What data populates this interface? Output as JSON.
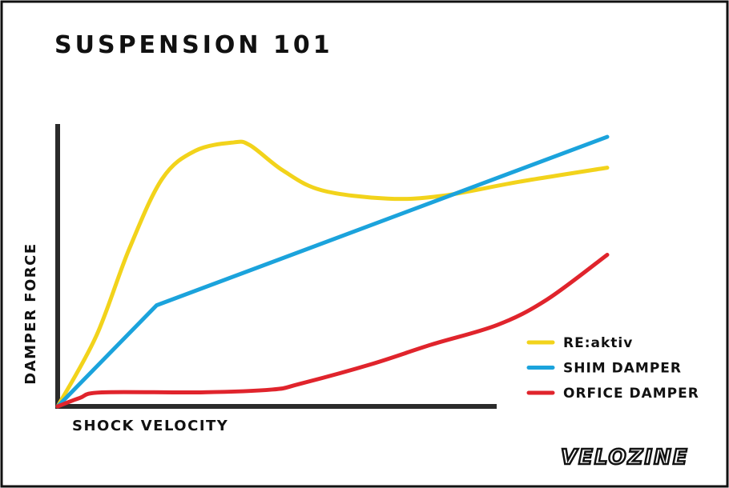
{
  "chart_data": {
    "type": "line",
    "title": "SUSPENSION 101",
    "x_label": "SHOCK VELOCITY",
    "y_label": "DAMPER FORCE",
    "xlim": [
      0,
      100
    ],
    "ylim": [
      0,
      100
    ],
    "legend": "right",
    "series": [
      {
        "name": "RE:aktiv",
        "color": "#f2d31b",
        "smooth": true,
        "x": [
          0,
          7,
          13,
          19,
          25,
          32,
          35,
          41,
          48,
          60,
          70,
          84,
          100
        ],
        "values": [
          0,
          25,
          56,
          81,
          91,
          94,
          93,
          84,
          77,
          74,
          75,
          80,
          85
        ]
      },
      {
        "name": "SHIM DAMPER",
        "color": "#1ba3dc",
        "smooth": false,
        "x": [
          0,
          18,
          100
        ],
        "values": [
          0,
          36,
          96
        ]
      },
      {
        "name": "ORFICE DAMPER",
        "color": "#e0242c",
        "smooth": true,
        "x": [
          0,
          4,
          8,
          26,
          39,
          44,
          57,
          68,
          80,
          89,
          100
        ],
        "values": [
          0,
          3,
          5,
          5,
          6,
          8,
          15,
          22,
          29,
          38,
          54
        ]
      }
    ]
  },
  "logo": "VELOZINE"
}
